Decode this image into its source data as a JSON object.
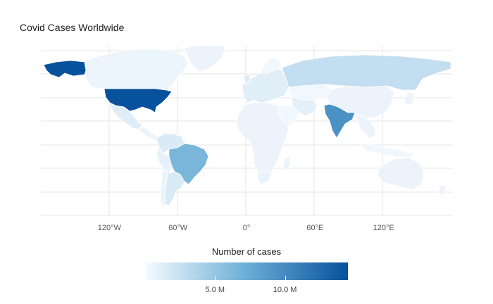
{
  "title": "Covid Cases Worldwide",
  "legend": {
    "title": "Number of cases",
    "color_low": "#f7fbff",
    "color_mid": "#6baed6",
    "color_high": "#08519c",
    "max_value": 14500000,
    "ticks": [
      {
        "value": 5000000,
        "label": "5.0 M"
      },
      {
        "value": 10000000,
        "label": "10.0 M"
      }
    ]
  },
  "axis": {
    "x_ticks": [
      {
        "lon": -120,
        "label": "120°W"
      },
      {
        "lon": -60,
        "label": "60°W"
      },
      {
        "lon": 0,
        "label": "0°"
      },
      {
        "lon": 60,
        "label": "60°E"
      },
      {
        "lon": 120,
        "label": "120°E"
      }
    ]
  },
  "countries": {
    "usa": 14500000,
    "india": 9500000,
    "brazil": 6500000,
    "russia": 2700000,
    "argentina": 1600000,
    "colombia": 1500000,
    "peru": 950000,
    "mexico": 1300000,
    "canada": 550000,
    "europe": 1200000,
    "iran": 1000000,
    "chile": 700000,
    "southafrica": 800000,
    "australia": 30000,
    "china": 90000,
    "africa_other": 60000,
    "asia_other": 350000,
    "greenland": 0,
    "alaska": 14500000
  }
}
